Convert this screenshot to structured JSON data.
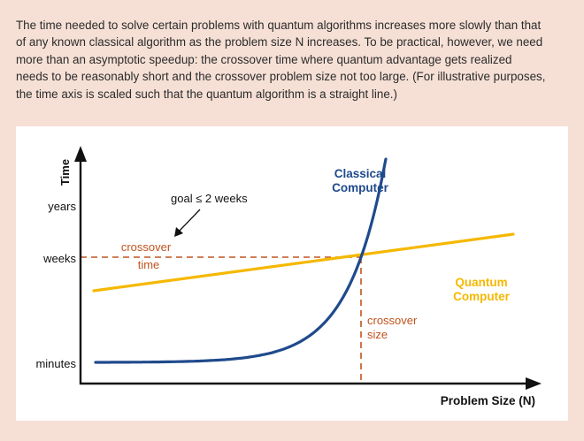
{
  "caption": "The time needed to solve certain problems with quantum algorithms increases more slowly than that of any known classical algorithm as the problem size N increases. To be practical, however, we need more than an asymptotic speedup: the crossover time where quantum advantage gets realized needs to be reasonably short and the crossover problem size not too large. (For illustrative purposes, the time axis is scaled such that the quantum algorithm is a straight line.)",
  "colors": {
    "background": "#f6e0d6",
    "classical": "#1f4a8c",
    "quantum": "#f5b800",
    "crossover": "#c0541e",
    "axis": "#111111"
  },
  "chart_data": {
    "type": "line",
    "title": "",
    "xlabel": "Problem Size (N)",
    "ylabel": "Time",
    "y_ticks": [
      "minutes",
      "weeks",
      "years"
    ],
    "grid": false,
    "series": [
      {
        "name": "Classical Computer",
        "label_lines": [
          "Classical",
          "Computer"
        ],
        "color": "#1f4a8c",
        "shape": "exponential growth"
      },
      {
        "name": "Quantum Computer",
        "label_lines": [
          "Quantum",
          "Computer"
        ],
        "color": "#f5b800",
        "shape": "straight line"
      }
    ],
    "annotations": {
      "goal": "goal ≤ 2 weeks",
      "crossover_time": [
        "crossover",
        "time"
      ],
      "crossover_size": [
        "crossover",
        "size"
      ]
    }
  }
}
